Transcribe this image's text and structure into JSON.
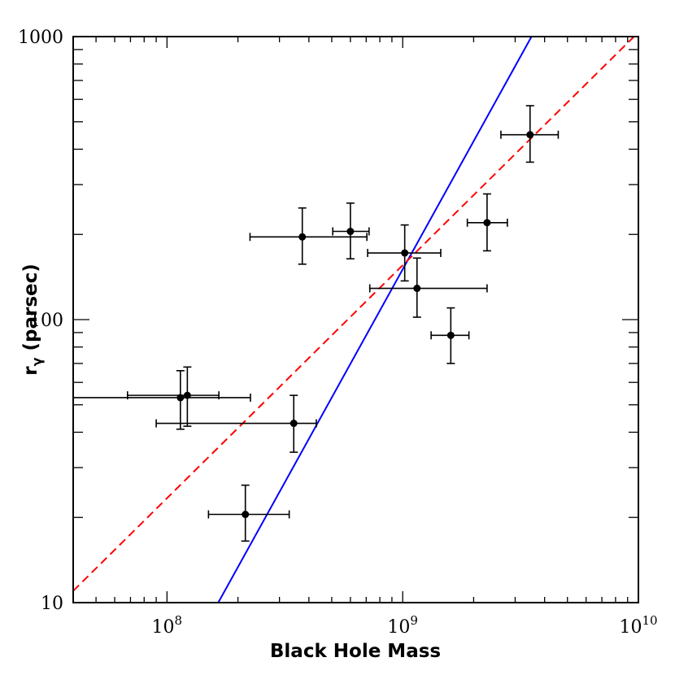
{
  "chart_data": {
    "type": "scatter",
    "x_scale": "log",
    "y_scale": "log",
    "xlabel": "Black Hole Mass",
    "ylabel": "r",
    "ylabel_subscript": "γ",
    "ylabel_suffix": " (parsec)",
    "xlim": [
      40000000,
      10000000000
    ],
    "ylim": [
      10,
      1000
    ],
    "x_ticks": [
      {
        "value": 100000000,
        "base": "10",
        "exp": "8"
      },
      {
        "value": 1000000000,
        "base": "10",
        "exp": "9"
      },
      {
        "value": 10000000000,
        "base": "10",
        "exp": "10"
      }
    ],
    "y_ticks": [
      {
        "value": 10,
        "label": "10"
      },
      {
        "value": 100,
        "label": "100"
      },
      {
        "value": 1000,
        "label": "1000"
      }
    ],
    "points": [
      {
        "x": 114000000,
        "y": 53,
        "xerr": [
          40000000,
          226000000
        ],
        "yerr": [
          41,
          66
        ]
      },
      {
        "x": 122000000,
        "y": 54,
        "xerr": [
          68000000,
          166000000
        ],
        "yerr": [
          42,
          68
        ]
      },
      {
        "x": 215000000,
        "y": 20.5,
        "xerr": [
          150000000,
          330000000
        ],
        "yerr": [
          16.5,
          26
        ]
      },
      {
        "x": 345000000,
        "y": 43,
        "xerr": [
          90000000,
          430000000
        ],
        "yerr": [
          34,
          54
        ]
      },
      {
        "x": 375000000,
        "y": 196,
        "xerr": [
          225000000,
          705000000
        ],
        "yerr": [
          157,
          248
        ]
      },
      {
        "x": 600000000,
        "y": 205,
        "xerr": [
          505000000,
          720000000
        ],
        "yerr": [
          164,
          258
        ]
      },
      {
        "x": 1020000000,
        "y": 172,
        "xerr": [
          710000000,
          1450000000
        ],
        "yerr": [
          137,
          216
        ]
      },
      {
        "x": 1150000000,
        "y": 129,
        "xerr": [
          725000000,
          2280000000
        ],
        "yerr": [
          102,
          165
        ]
      },
      {
        "x": 1600000000,
        "y": 88,
        "xerr": [
          1320000000,
          1910000000
        ],
        "yerr": [
          70,
          110
        ]
      },
      {
        "x": 2280000000,
        "y": 220,
        "xerr": [
          1880000000,
          2780000000
        ],
        "yerr": [
          175,
          278
        ]
      },
      {
        "x": 3470000000,
        "y": 450,
        "xerr": [
          2610000000,
          4570000000
        ],
        "yerr": [
          360,
          570
        ]
      }
    ],
    "lines": [
      {
        "style": "solid",
        "color": "#0000ff",
        "points": [
          [
            165000000,
            10
          ],
          [
            3520000000,
            1000
          ]
        ]
      },
      {
        "style": "dashed",
        "color": "#ff0000",
        "points": [
          [
            40000000,
            11
          ],
          [
            9580000000,
            1000
          ]
        ]
      }
    ],
    "grid": false,
    "legend": "none"
  }
}
